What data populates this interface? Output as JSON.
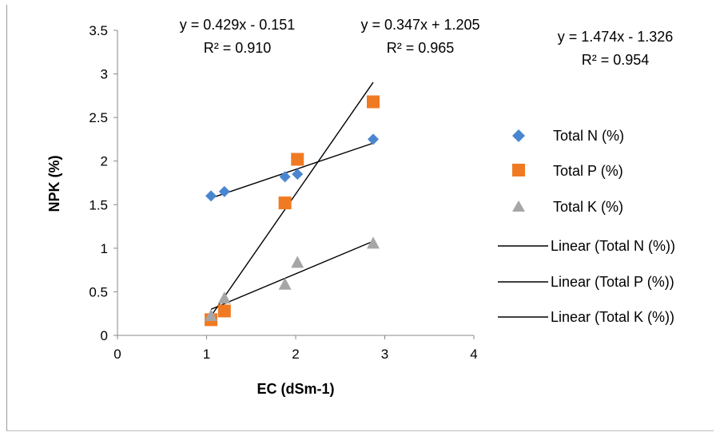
{
  "chart_data": {
    "type": "scatter",
    "xlabel": "EC (dSm-1)",
    "ylabel": "NPK (%)",
    "xlim": [
      0,
      4
    ],
    "ylim": [
      0,
      3.5
    ],
    "x_ticks": [
      "0",
      "1",
      "2",
      "3",
      "4"
    ],
    "y_ticks": [
      "0",
      "0.5",
      "1",
      "1.5",
      "2",
      "2.5",
      "3",
      "3.5"
    ],
    "grid": false,
    "legend_position": "right",
    "series": [
      {
        "name": "Total N (%)",
        "marker": "diamond",
        "color": "#4A86D0",
        "x": [
          1.05,
          1.2,
          1.88,
          2.02,
          2.87
        ],
        "y": [
          1.6,
          1.65,
          1.82,
          1.85,
          2.25
        ]
      },
      {
        "name": "Total P (%)",
        "marker": "square",
        "color": "#F07A22",
        "x": [
          1.05,
          1.2,
          1.88,
          2.02,
          2.87
        ],
        "y": [
          0.18,
          0.28,
          1.52,
          2.02,
          2.68
        ]
      },
      {
        "name": "Total K (%)",
        "marker": "triangle",
        "color": "#A6A6A6",
        "x": [
          1.05,
          1.2,
          1.88,
          2.02,
          2.87
        ],
        "y": [
          0.22,
          0.42,
          0.58,
          0.83,
          1.05
        ]
      }
    ],
    "trendlines": [
      {
        "name": "Linear (Total N (%))",
        "color": "#000000",
        "x": [
          1.05,
          2.87
        ],
        "y": [
          1.575,
          2.206
        ]
      },
      {
        "name": "Linear (Total P (%))",
        "color": "#000000",
        "x": [
          1.05,
          2.87
        ],
        "y": [
          0.222,
          2.904
        ]
      },
      {
        "name": "Linear (Total K (%))",
        "color": "#000000",
        "x": [
          1.05,
          2.87
        ],
        "y": [
          0.299,
          1.08
        ]
      }
    ],
    "annotations": [
      {
        "line1": "y = 0.429x - 0.151",
        "line2": "R² = 0.910"
      },
      {
        "line1": "y = 0.347x + 1.205",
        "line2": "R² = 0.965"
      },
      {
        "line1": "y = 1.474x - 1.326",
        "line2": "R² = 0.954"
      }
    ]
  }
}
